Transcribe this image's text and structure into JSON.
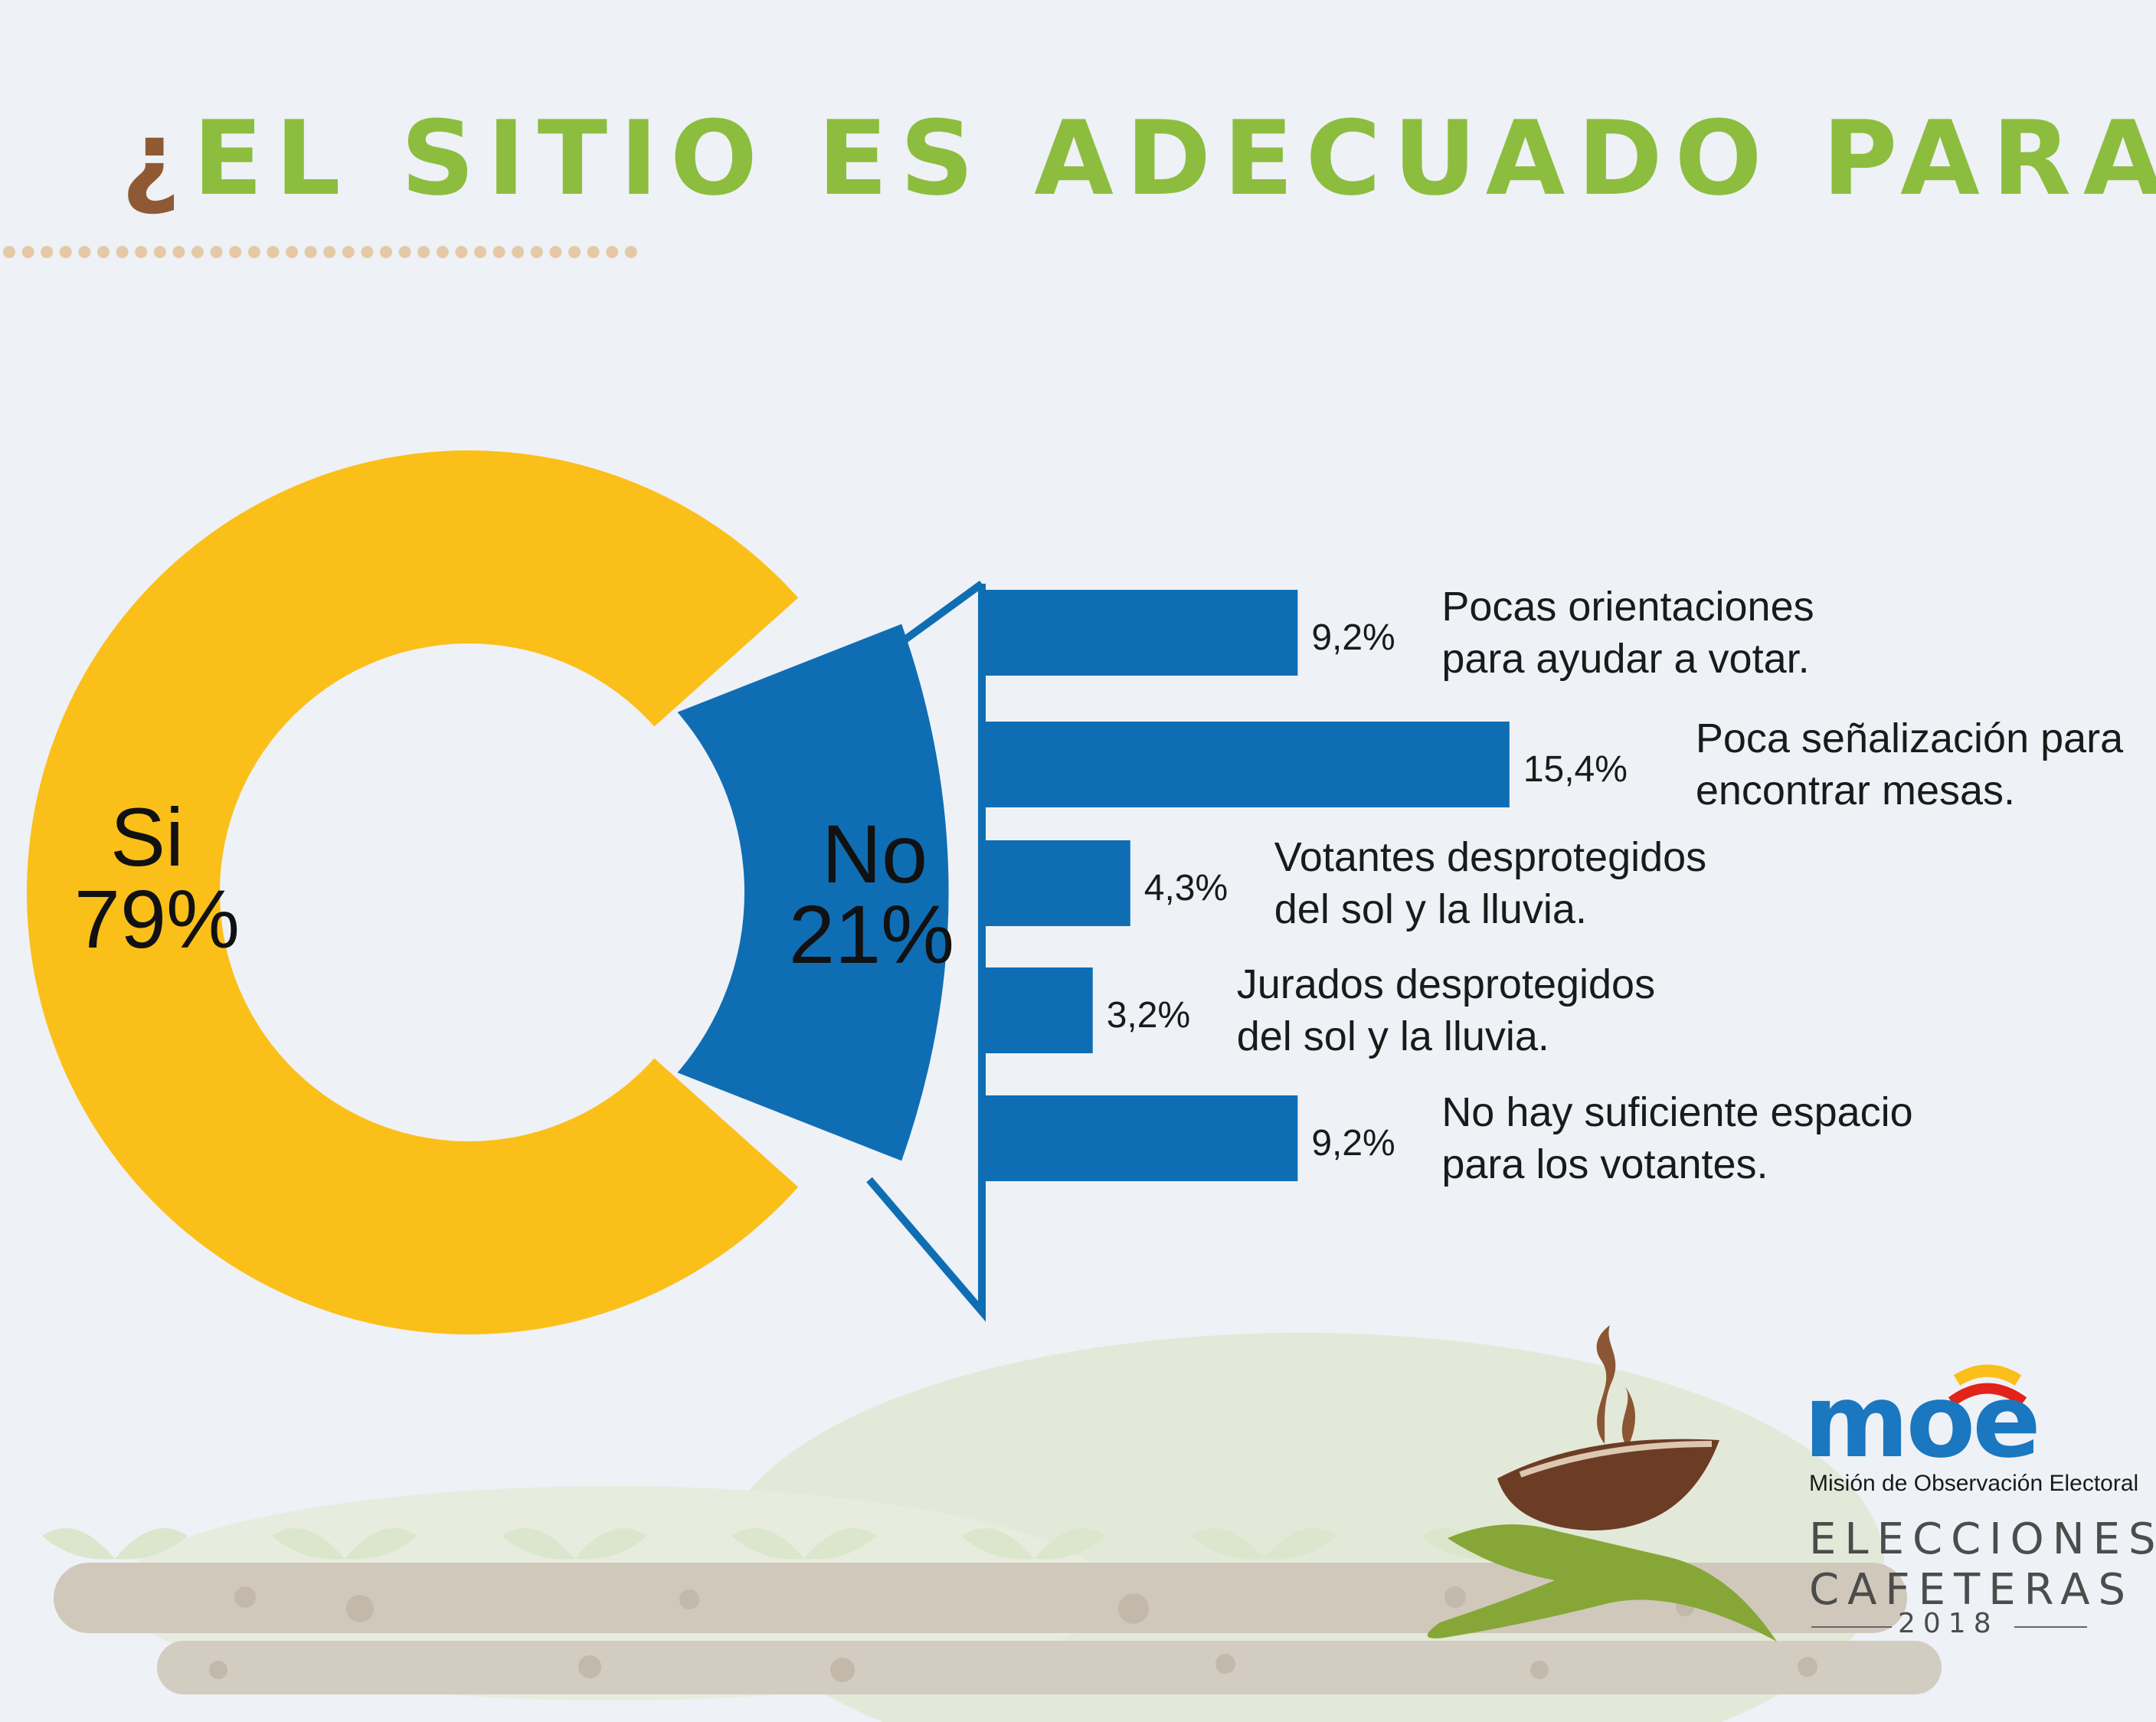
{
  "title": {
    "open": "¿",
    "text": "EL SITIO ES ADECUADO PARA VOTAR",
    "close": "?"
  },
  "chart_data": [
    {
      "type": "pie",
      "slices": [
        {
          "label": "Si",
          "value": 79,
          "value_text": "79%",
          "color": "#fbbf19"
        },
        {
          "label": "No",
          "value": 21,
          "value_text": "21%",
          "color": "#0f6db4"
        }
      ]
    },
    {
      "type": "bar",
      "orientation": "horizontal",
      "categories": [
        [
          "Pocas orientaciones",
          "para ayudar a votar."
        ],
        [
          "Poca señalización para",
          "encontrar mesas."
        ],
        [
          "Votantes desprotegidos",
          "del sol y la lluvia."
        ],
        [
          "Jurados desprotegidos",
          "del sol y la lluvia."
        ],
        [
          "No hay suficiente espacio",
          "para los votantes."
        ]
      ],
      "values": [
        9.2,
        15.4,
        4.3,
        3.2,
        9.2
      ],
      "value_labels": [
        "9,2%",
        "15,4%",
        "4,3%",
        "3,2%",
        "9,2%"
      ],
      "color": "#0f6db4"
    }
  ],
  "branding": {
    "logo_word": "moe",
    "org": "Misión de Observación Electoral",
    "campaign_line1": "ELECCIONES",
    "campaign_line2": "CAFETERAS",
    "year": "2018"
  },
  "colors": {
    "title_green": "#8cbd3f",
    "title_brown": "#8f5a33",
    "background": "#eef1f5",
    "dots": "#e5c9a6"
  }
}
